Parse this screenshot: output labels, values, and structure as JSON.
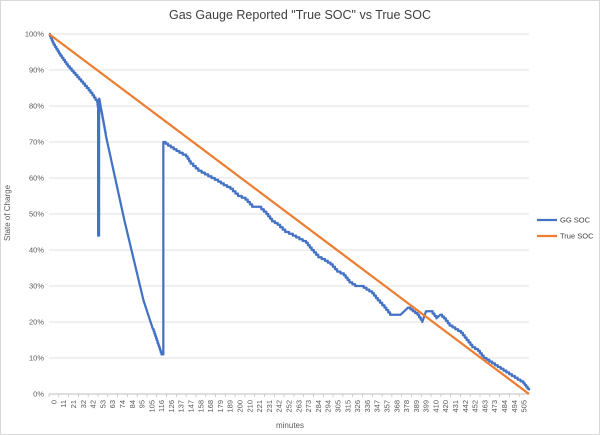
{
  "chart_data": {
    "type": "line",
    "title": "Gas Gauge Reported \"True SOC\" vs True SOC",
    "xlabel": "minutes",
    "ylabel": "State of Charge",
    "xlim": [
      0,
      508
    ],
    "ylim": [
      0,
      100
    ],
    "y_tick_labels": [
      "0%",
      "10%",
      "20%",
      "30%",
      "40%",
      "50%",
      "60%",
      "70%",
      "80%",
      "90%",
      "100%"
    ],
    "x_tick_labels": [
      "0",
      "11",
      "21",
      "32",
      "42",
      "53",
      "63",
      "74",
      "84",
      "95",
      "105",
      "116",
      "126",
      "137",
      "147",
      "158",
      "168",
      "179",
      "189",
      "200",
      "210",
      "221",
      "231",
      "242",
      "252",
      "263",
      "273",
      "284",
      "294",
      "305",
      "315",
      "326",
      "336",
      "347",
      "357",
      "368",
      "378",
      "389",
      "399",
      "410",
      "420",
      "431",
      "442",
      "452",
      "463",
      "473",
      "484",
      "494",
      "505"
    ],
    "grid": "horizontal",
    "legend_position": "right",
    "series": [
      {
        "name": "GG SOC",
        "color": "#4472C4",
        "points": [
          [
            0,
            100
          ],
          [
            5,
            97
          ],
          [
            12,
            94
          ],
          [
            20,
            91
          ],
          [
            30,
            88
          ],
          [
            40,
            85
          ],
          [
            46,
            83
          ],
          [
            51,
            81
          ],
          [
            52,
            79
          ],
          [
            52,
            44
          ],
          [
            53,
            44
          ],
          [
            53,
            82
          ],
          [
            55,
            79
          ],
          [
            60,
            72
          ],
          [
            70,
            60
          ],
          [
            80,
            48
          ],
          [
            90,
            37
          ],
          [
            100,
            26
          ],
          [
            110,
            18
          ],
          [
            119,
            11
          ],
          [
            121,
            11
          ],
          [
            121,
            70
          ],
          [
            126,
            69
          ],
          [
            132,
            68
          ],
          [
            138,
            67
          ],
          [
            145,
            66
          ],
          [
            150,
            64
          ],
          [
            158,
            62
          ],
          [
            165,
            61
          ],
          [
            172,
            60
          ],
          [
            179,
            59
          ],
          [
            185,
            58
          ],
          [
            192,
            57
          ],
          [
            200,
            55
          ],
          [
            208,
            54
          ],
          [
            215,
            52
          ],
          [
            222,
            52
          ],
          [
            230,
            50
          ],
          [
            236,
            48
          ],
          [
            242,
            47
          ],
          [
            250,
            45
          ],
          [
            258,
            44
          ],
          [
            265,
            43
          ],
          [
            272,
            42
          ],
          [
            278,
            40
          ],
          [
            285,
            38
          ],
          [
            292,
            37
          ],
          [
            298,
            36
          ],
          [
            305,
            34
          ],
          [
            312,
            33
          ],
          [
            318,
            31
          ],
          [
            324,
            30
          ],
          [
            330,
            30
          ],
          [
            336,
            29
          ],
          [
            342,
            28
          ],
          [
            348,
            26
          ],
          [
            355,
            24
          ],
          [
            361,
            22
          ],
          [
            367,
            22
          ],
          [
            372,
            22
          ],
          [
            376,
            23
          ],
          [
            380,
            24
          ],
          [
            385,
            23
          ],
          [
            390,
            22
          ],
          [
            395,
            20
          ],
          [
            399,
            23
          ],
          [
            404,
            23
          ],
          [
            410,
            21
          ],
          [
            414,
            22
          ],
          [
            418,
            21
          ],
          [
            424,
            19
          ],
          [
            430,
            18
          ],
          [
            436,
            17
          ],
          [
            442,
            15
          ],
          [
            448,
            13
          ],
          [
            454,
            12
          ],
          [
            460,
            10
          ],
          [
            466,
            9
          ],
          [
            472,
            8
          ],
          [
            478,
            7
          ],
          [
            484,
            6
          ],
          [
            490,
            5
          ],
          [
            496,
            4
          ],
          [
            502,
            3
          ],
          [
            505,
            2
          ],
          [
            508,
            1
          ]
        ]
      },
      {
        "name": "True SOC",
        "color": "#ED7D31",
        "points": [
          [
            0,
            100
          ],
          [
            508,
            0
          ]
        ]
      }
    ]
  }
}
